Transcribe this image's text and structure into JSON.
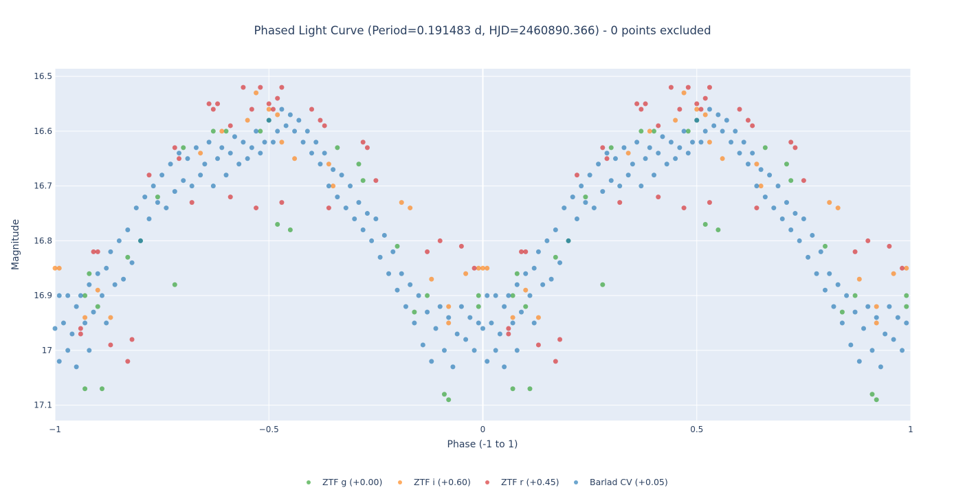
{
  "chart_data": {
    "type": "scatter",
    "title": "Phased Light Curve (Period=0.191483 d, HJD=2460890.366) - 0 points excluded",
    "xlabel": "Phase (-1 to 1)",
    "ylabel": "Magnitude",
    "xlim": [
      -1,
      1
    ],
    "ylim": [
      17.128,
      16.486
    ],
    "y_reversed": true,
    "grid": true,
    "legend_position": "bottom-center",
    "phase_repeated_at_minus_one": true,
    "xticks": [
      {
        "v": -1,
        "label": "−1"
      },
      {
        "v": -0.5,
        "label": "−0.5"
      },
      {
        "v": 0,
        "label": "0"
      },
      {
        "v": 0.5,
        "label": "0.5"
      },
      {
        "v": 1,
        "label": "1"
      }
    ],
    "yticks": [
      {
        "v": 16.5,
        "label": "16.5"
      },
      {
        "v": 16.6,
        "label": "16.6"
      },
      {
        "v": 16.7,
        "label": "16.7"
      },
      {
        "v": 16.8,
        "label": "16.8"
      },
      {
        "v": 16.9,
        "label": "16.9"
      },
      {
        "v": 17.0,
        "label": "17"
      },
      {
        "v": 17.1,
        "label": "17.1"
      }
    ],
    "series": [
      {
        "name": "ZTF g (+0.00)",
        "color": "#2ca02c",
        "points": [
          [
            0.07,
            16.9
          ],
          [
            0.07,
            17.07
          ],
          [
            0.08,
            16.86
          ],
          [
            0.1,
            16.92
          ],
          [
            0.11,
            17.07
          ],
          [
            0.17,
            16.83
          ],
          [
            0.2,
            16.8
          ],
          [
            0.24,
            16.72
          ],
          [
            0.28,
            16.88
          ],
          [
            0.3,
            16.63
          ],
          [
            0.37,
            16.6
          ],
          [
            0.4,
            16.6
          ],
          [
            0.48,
            16.6
          ],
          [
            0.5,
            16.58
          ],
          [
            0.52,
            16.77
          ],
          [
            0.55,
            16.78
          ],
          [
            0.66,
            16.63
          ],
          [
            0.71,
            16.66
          ],
          [
            0.72,
            16.69
          ],
          [
            0.8,
            16.81
          ],
          [
            0.84,
            16.93
          ],
          [
            0.87,
            16.9
          ],
          [
            0.91,
            17.08
          ],
          [
            0.92,
            17.09
          ],
          [
            0.99,
            16.92
          ],
          [
            0.99,
            16.9
          ]
        ]
      },
      {
        "name": "ZTF i (+0.60)",
        "color": "#ff7f0e",
        "points": [
          [
            0.0,
            16.85
          ],
          [
            0.01,
            16.85
          ],
          [
            0.07,
            16.94
          ],
          [
            0.1,
            16.89
          ],
          [
            0.13,
            16.94
          ],
          [
            0.34,
            16.64
          ],
          [
            0.39,
            16.6
          ],
          [
            0.45,
            16.58
          ],
          [
            0.47,
            16.53
          ],
          [
            0.5,
            16.56
          ],
          [
            0.52,
            16.57
          ],
          [
            0.53,
            16.62
          ],
          [
            0.56,
            16.65
          ],
          [
            0.64,
            16.66
          ],
          [
            0.65,
            16.7
          ],
          [
            0.81,
            16.73
          ],
          [
            0.83,
            16.74
          ],
          [
            0.88,
            16.87
          ],
          [
            0.92,
            16.92
          ],
          [
            0.96,
            16.86
          ],
          [
            0.99,
            16.85
          ],
          [
            0.92,
            16.95
          ]
        ]
      },
      {
        "name": "ZTF r (+0.45)",
        "color": "#d62728",
        "points": [
          [
            0.06,
            16.97
          ],
          [
            0.06,
            16.96
          ],
          [
            0.09,
            16.82
          ],
          [
            0.1,
            16.82
          ],
          [
            0.13,
            16.99
          ],
          [
            0.17,
            17.02
          ],
          [
            0.18,
            16.98
          ],
          [
            0.22,
            16.68
          ],
          [
            0.28,
            16.63
          ],
          [
            0.29,
            16.65
          ],
          [
            0.36,
            16.55
          ],
          [
            0.37,
            16.56
          ],
          [
            0.38,
            16.55
          ],
          [
            0.41,
            16.59
          ],
          [
            0.44,
            16.52
          ],
          [
            0.46,
            16.56
          ],
          [
            0.48,
            16.52
          ],
          [
            0.5,
            16.55
          ],
          [
            0.51,
            16.56
          ],
          [
            0.52,
            16.54
          ],
          [
            0.53,
            16.52
          ],
          [
            0.6,
            16.56
          ],
          [
            0.62,
            16.58
          ],
          [
            0.63,
            16.59
          ],
          [
            0.72,
            16.62
          ],
          [
            0.73,
            16.63
          ],
          [
            0.64,
            16.74
          ],
          [
            0.75,
            16.69
          ],
          [
            0.87,
            16.82
          ],
          [
            0.9,
            16.8
          ],
          [
            0.95,
            16.81
          ],
          [
            0.98,
            16.85
          ],
          [
            0.32,
            16.73
          ],
          [
            0.41,
            16.72
          ],
          [
            0.47,
            16.74
          ],
          [
            0.53,
            16.73
          ]
        ]
      },
      {
        "name": "Barlad CV (+0.05)",
        "color": "#1f77b4",
        "points": [
          [
            0.0,
            16.96
          ],
          [
            0.01,
            17.02
          ],
          [
            0.01,
            16.9
          ],
          [
            0.02,
            16.95
          ],
          [
            0.03,
            17.0
          ],
          [
            0.03,
            16.9
          ],
          [
            0.04,
            16.97
          ],
          [
            0.05,
            16.92
          ],
          [
            0.05,
            17.03
          ],
          [
            0.06,
            16.9
          ],
          [
            0.07,
            16.95
          ],
          [
            0.08,
            16.88
          ],
          [
            0.08,
            17.0
          ],
          [
            0.09,
            16.93
          ],
          [
            0.1,
            16.86
          ],
          [
            0.11,
            16.9
          ],
          [
            0.12,
            16.85
          ],
          [
            0.12,
            16.95
          ],
          [
            0.13,
            16.82
          ],
          [
            0.14,
            16.88
          ],
          [
            0.15,
            16.8
          ],
          [
            0.16,
            16.87
          ],
          [
            0.17,
            16.78
          ],
          [
            0.18,
            16.84
          ],
          [
            0.19,
            16.74
          ],
          [
            0.2,
            16.8
          ],
          [
            0.21,
            16.72
          ],
          [
            0.22,
            16.76
          ],
          [
            0.23,
            16.7
          ],
          [
            0.24,
            16.73
          ],
          [
            0.25,
            16.68
          ],
          [
            0.26,
            16.74
          ],
          [
            0.27,
            16.66
          ],
          [
            0.28,
            16.71
          ],
          [
            0.29,
            16.64
          ],
          [
            0.3,
            16.69
          ],
          [
            0.31,
            16.65
          ],
          [
            0.32,
            16.7
          ],
          [
            0.33,
            16.63
          ],
          [
            0.34,
            16.68
          ],
          [
            0.35,
            16.66
          ],
          [
            0.36,
            16.62
          ],
          [
            0.37,
            16.7
          ],
          [
            0.38,
            16.65
          ],
          [
            0.39,
            16.63
          ],
          [
            0.4,
            16.68
          ],
          [
            0.41,
            16.64
          ],
          [
            0.42,
            16.61
          ],
          [
            0.43,
            16.66
          ],
          [
            0.44,
            16.62
          ],
          [
            0.45,
            16.65
          ],
          [
            0.46,
            16.63
          ],
          [
            0.47,
            16.6
          ],
          [
            0.48,
            16.64
          ],
          [
            0.49,
            16.62
          ],
          [
            0.5,
            16.58
          ],
          [
            0.51,
            16.62
          ],
          [
            0.52,
            16.6
          ],
          [
            0.53,
            16.56
          ],
          [
            0.54,
            16.59
          ],
          [
            0.55,
            16.57
          ],
          [
            0.56,
            16.6
          ],
          [
            0.57,
            16.58
          ],
          [
            0.58,
            16.62
          ],
          [
            0.59,
            16.6
          ],
          [
            0.6,
            16.64
          ],
          [
            0.61,
            16.62
          ],
          [
            0.62,
            16.66
          ],
          [
            0.63,
            16.64
          ],
          [
            0.64,
            16.7
          ],
          [
            0.65,
            16.67
          ],
          [
            0.66,
            16.72
          ],
          [
            0.67,
            16.68
          ],
          [
            0.68,
            16.74
          ],
          [
            0.69,
            16.7
          ],
          [
            0.7,
            16.76
          ],
          [
            0.71,
            16.73
          ],
          [
            0.72,
            16.78
          ],
          [
            0.73,
            16.75
          ],
          [
            0.74,
            16.8
          ],
          [
            0.75,
            16.76
          ],
          [
            0.76,
            16.83
          ],
          [
            0.77,
            16.79
          ],
          [
            0.78,
            16.86
          ],
          [
            0.79,
            16.82
          ],
          [
            0.8,
            16.89
          ],
          [
            0.81,
            16.86
          ],
          [
            0.82,
            16.92
          ],
          [
            0.83,
            16.88
          ],
          [
            0.84,
            16.95
          ],
          [
            0.85,
            16.9
          ],
          [
            0.86,
            16.99
          ],
          [
            0.87,
            16.93
          ],
          [
            0.88,
            17.02
          ],
          [
            0.89,
            16.96
          ],
          [
            0.9,
            16.92
          ],
          [
            0.91,
            17.0
          ],
          [
            0.92,
            16.94
          ],
          [
            0.93,
            17.03
          ],
          [
            0.94,
            16.97
          ],
          [
            0.95,
            16.92
          ],
          [
            0.96,
            16.98
          ],
          [
            0.97,
            16.94
          ],
          [
            0.98,
            17.0
          ],
          [
            0.99,
            16.95
          ]
        ]
      }
    ]
  }
}
